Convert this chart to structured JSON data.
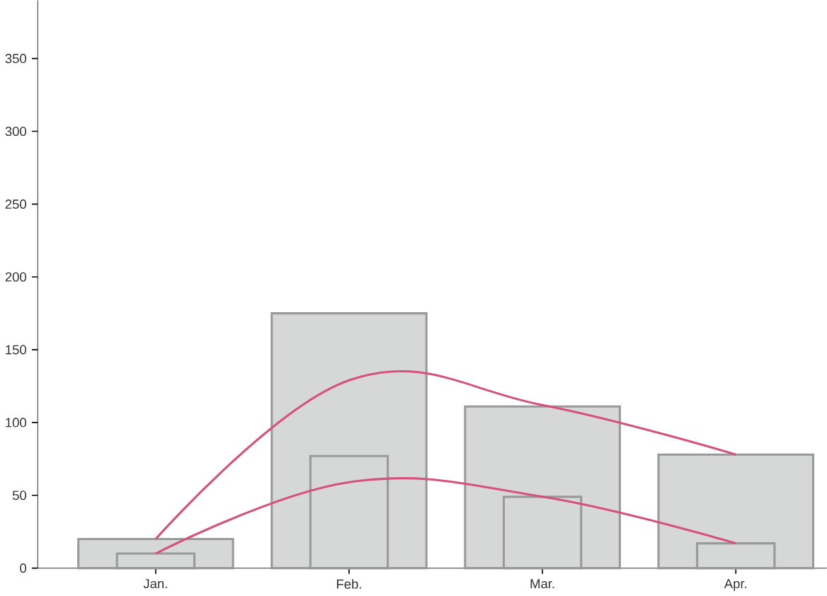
{
  "chart_data": {
    "type": "bar",
    "categories": [
      "Jan.",
      "Feb.",
      "Mar.",
      "Apr."
    ],
    "series": [
      {
        "color": "#d5d8d7",
        "values": [
          20,
          175,
          111,
          78
        ]
      },
      {
        "color": "#d5d8d7",
        "values": [
          10,
          77,
          49,
          17
        ]
      },
      {
        "type": "line",
        "color": "#d6527a",
        "values": [
          20,
          129,
          112,
          78
        ]
      },
      {
        "type": "line",
        "color": "#d6527a",
        "values": [
          10,
          59,
          49,
          17
        ]
      }
    ],
    "ylim": [
      0,
      390
    ],
    "yticks": [
      0,
      50,
      100,
      150,
      200,
      250,
      300,
      350
    ],
    "grid": false,
    "marker": "none",
    "line_style": "solid"
  }
}
